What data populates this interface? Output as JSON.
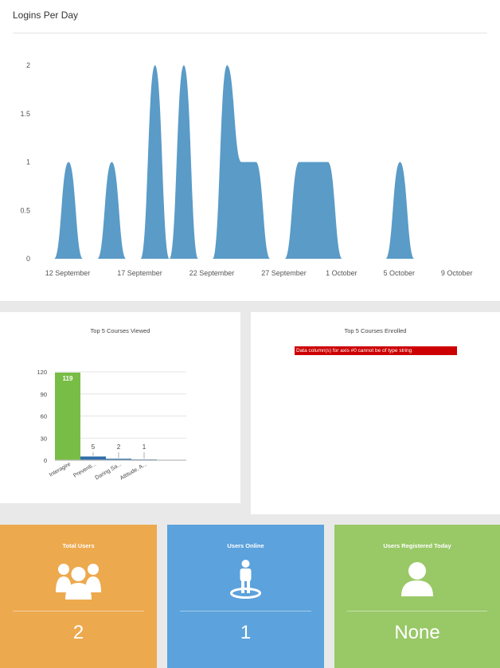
{
  "logins": {
    "title": "Logins Per Day",
    "color": "#5a9bc7",
    "chart_data": {
      "type": "area",
      "title": "",
      "ylim": [
        0,
        2
      ],
      "yticks": [
        "2",
        "1.5",
        "1",
        "0.5",
        "0"
      ],
      "xticks": [
        "12 September",
        "17 September",
        "22 September",
        "27 September",
        "1 October",
        "5 October",
        "9 October"
      ],
      "x": [
        "12 September",
        "13 September",
        "14 September",
        "15 September",
        "16 September",
        "17 September",
        "18 September",
        "19 September",
        "20 September",
        "21 September",
        "22 September",
        "23 September",
        "24 September",
        "25 September",
        "26 September",
        "27 September",
        "28 September",
        "29 September",
        "30 September",
        "1 October",
        "2 October",
        "3 October",
        "4 October",
        "5 October",
        "6 October",
        "7 October",
        "8 October",
        "9 October",
        "10 October"
      ],
      "values": [
        0,
        1,
        0,
        0,
        1,
        0,
        0,
        2,
        0,
        2,
        0,
        0,
        2,
        1,
        1,
        0,
        0,
        1,
        1,
        1,
        0,
        0,
        0,
        0,
        1,
        0,
        0,
        0,
        0
      ]
    }
  },
  "viewed": {
    "title": "Top 5 Courses Viewed",
    "chart_data": {
      "type": "bar",
      "title": "Top 5 Courses Viewed",
      "categories": [
        "Interagire",
        "Preventi...",
        "Daring Sa...",
        "Attitude, A..."
      ],
      "values": [
        119,
        5,
        2,
        1
      ],
      "data_labels": [
        "119",
        "5",
        "2",
        "1"
      ],
      "ylim": [
        0,
        120
      ],
      "yticks": [
        "120",
        "90",
        "60",
        "30",
        "0"
      ],
      "colors": [
        "#78bd45",
        "#2f6ea9",
        "#2f6ea9",
        "#2f6ea9"
      ]
    }
  },
  "enrolled": {
    "title": "Top 5 Courses Enrolled",
    "error": "Data column(s) for axis #0 cannot be of type string"
  },
  "stats": {
    "total_users": {
      "label": "Total Users",
      "value": "2",
      "icon": "users-group-icon"
    },
    "users_online": {
      "label": "Users Online",
      "value": "1",
      "icon": "user-online-icon"
    },
    "registered_today": {
      "label": "Users Registered Today",
      "value": "None",
      "icon": "user-icon"
    }
  }
}
